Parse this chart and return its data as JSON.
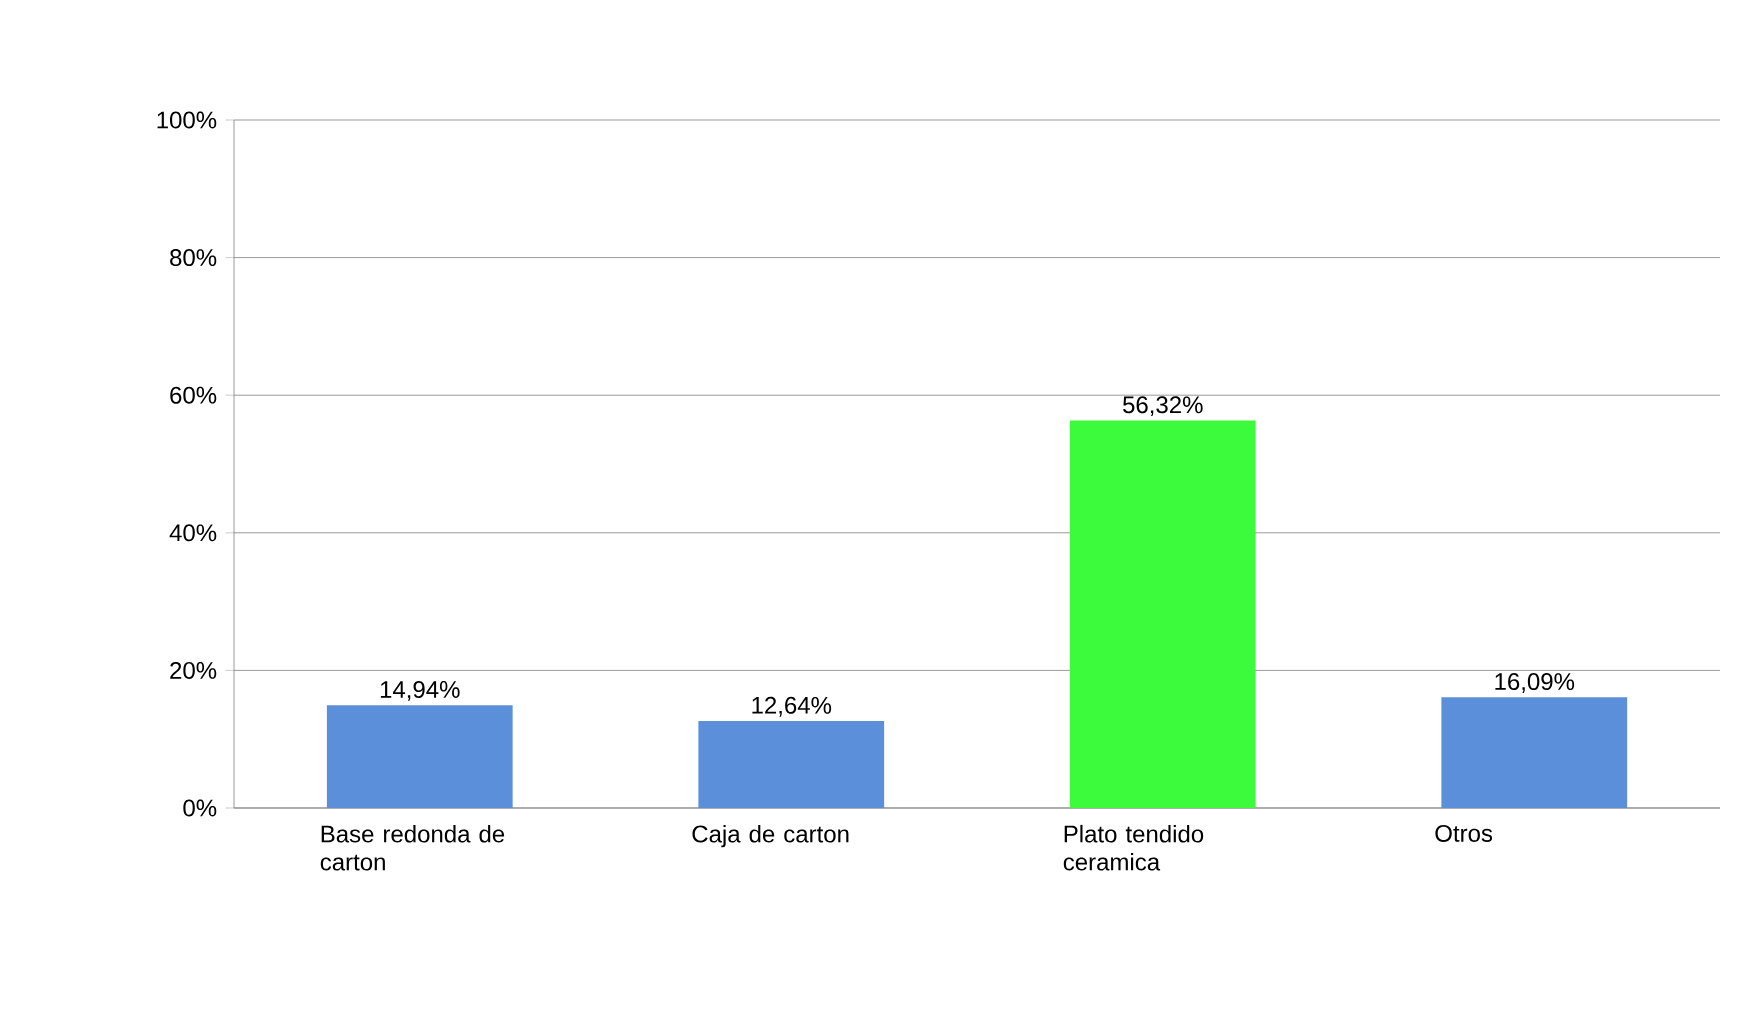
{
  "chart_data": {
    "type": "bar",
    "categories": [
      "Base redonda de carton",
      "Caja de carton",
      "Plato tendido ceramica",
      "Otros"
    ],
    "values": [
      14.94,
      12.64,
      56.32,
      16.09
    ],
    "value_labels": [
      "14,94%",
      "12,64%",
      "56,32%",
      "16,09%"
    ],
    "colors": [
      "#5b8fd9",
      "#5b8fd9",
      "#3cfa3c",
      "#5b8fd9"
    ],
    "ylim": [
      0,
      100
    ],
    "yticks": [
      {
        "value": 0,
        "label": "0%"
      },
      {
        "value": 20,
        "label": "20%"
      },
      {
        "value": 40,
        "label": "40%"
      },
      {
        "value": 60,
        "label": "60%"
      },
      {
        "value": 80,
        "label": "80%"
      },
      {
        "value": 100,
        "label": "100%"
      }
    ],
    "grid": "y"
  }
}
